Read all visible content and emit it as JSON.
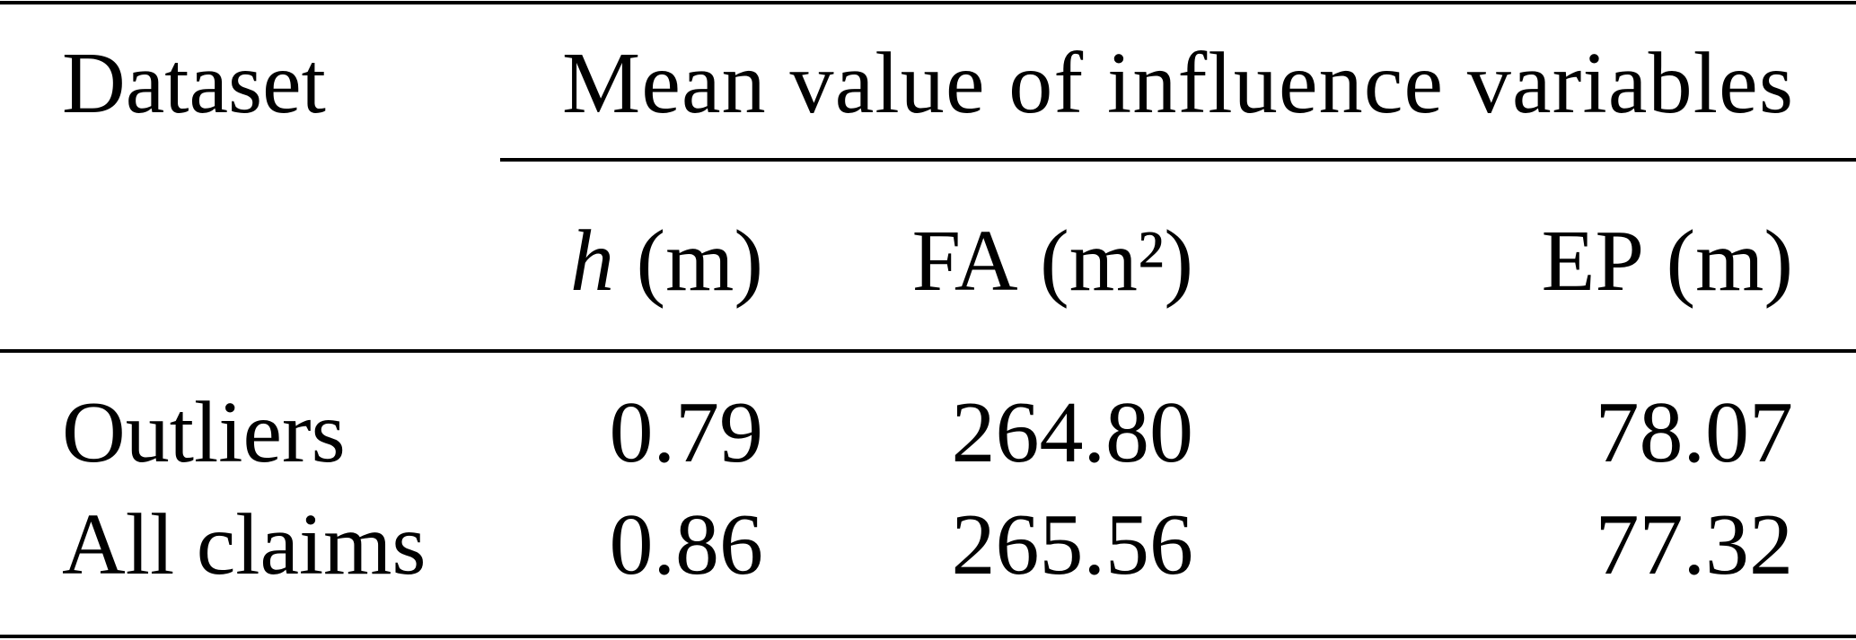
{
  "table": {
    "header": {
      "first": "Dataset",
      "group": "Mean value of influence variables"
    },
    "columns": [
      {
        "symbol": "h",
        "unit": "(m)"
      },
      {
        "symbol": "FA",
        "unit": "(m²)"
      },
      {
        "symbol": "EP",
        "unit": "(m)"
      }
    ],
    "rows": [
      [
        "Outliers",
        "0.79",
        "264.80",
        "78.07"
      ],
      [
        "All claims",
        "0.86",
        "265.56",
        "77.32"
      ]
    ]
  }
}
